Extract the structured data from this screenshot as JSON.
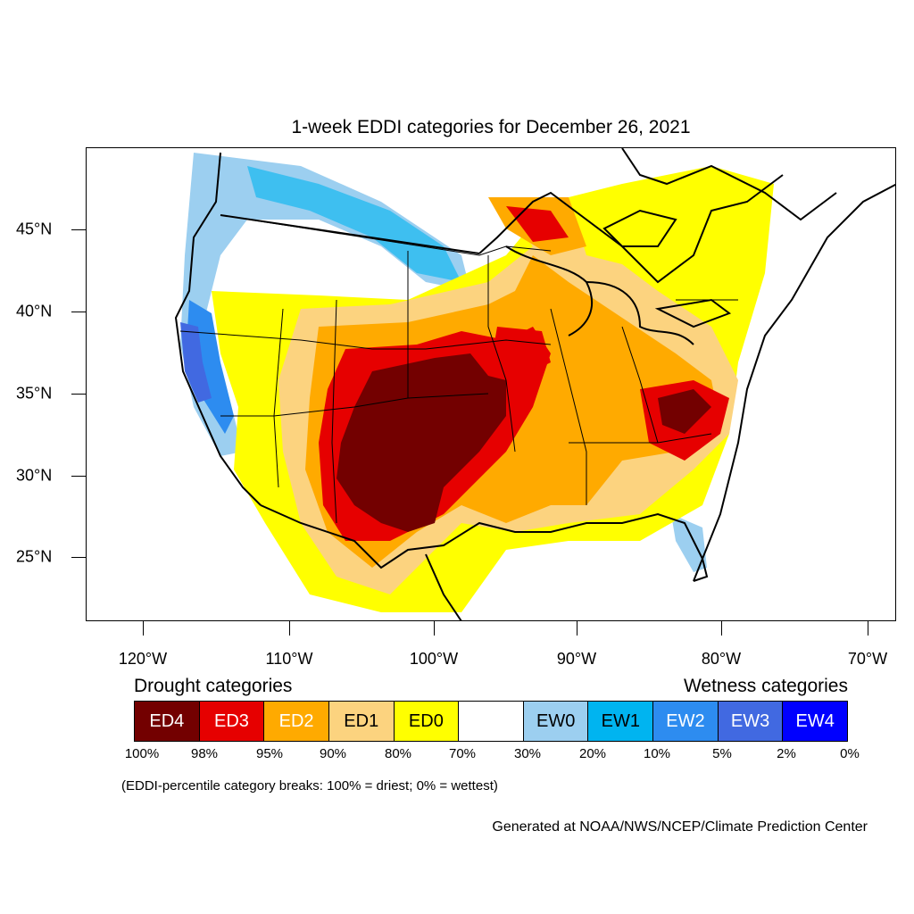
{
  "title": "1-week EDDI categories for December 26, 2021",
  "axes": {
    "lat_labels": [
      "45°N",
      "40°N",
      "35°N",
      "30°N",
      "25°N"
    ],
    "lon_labels": [
      "120°W",
      "110°W",
      "100°W",
      "90°W",
      "80°W",
      "70°W"
    ]
  },
  "legend": {
    "drought_heading": "Drought categories",
    "wetness_heading": "Wetness categories",
    "categories": [
      {
        "label": "ED4",
        "color": "#730000",
        "text_color": "#ffffff"
      },
      {
        "label": "ED3",
        "color": "#e60000",
        "text_color": "#ffffff"
      },
      {
        "label": "ED2",
        "color": "#ffaa00",
        "text_color": "#ffffff"
      },
      {
        "label": "ED1",
        "color": "#fcd37f",
        "text_color": "#000000"
      },
      {
        "label": "ED0",
        "color": "#ffff00",
        "text_color": "#000000"
      },
      {
        "label": "",
        "color": "#ffffff",
        "text_color": "#000000"
      },
      {
        "label": "EW0",
        "color": "#9ccff0",
        "text_color": "#000000"
      },
      {
        "label": "EW1",
        "color": "#00b4f0",
        "text_color": "#000000"
      },
      {
        "label": "EW2",
        "color": "#2d8cf0",
        "text_color": "#ffffff"
      },
      {
        "label": "EW3",
        "color": "#4169e1",
        "text_color": "#ffffff"
      },
      {
        "label": "EW4",
        "color": "#0000ff",
        "text_color": "#ffffff"
      }
    ],
    "breaks": [
      "100%",
      "98%",
      "95%",
      "90%",
      "80%",
      "70%",
      "30%",
      "20%",
      "10%",
      "5%",
      "2%",
      "0%"
    ]
  },
  "note": "(EDDI-percentile category breaks: 100% = driest; 0% = wettest)",
  "credit": "Generated at NOAA/NWS/NCEP/Climate Prediction Center"
}
